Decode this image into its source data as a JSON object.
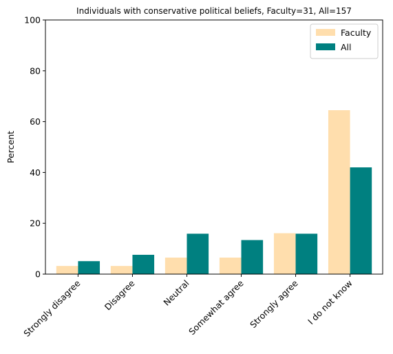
{
  "chart_data": {
    "type": "bar",
    "title": "Individuals with conservative political beliefs, Faculty=31, All=157",
    "xlabel": "",
    "ylabel": "Percent",
    "ylim": [
      0,
      100
    ],
    "yticks": [
      0,
      20,
      40,
      60,
      80,
      100
    ],
    "categories": [
      "Strongly disagree",
      "Disagree",
      "Neutral",
      "Somewhat agree",
      "Strongly agree",
      "I do not know"
    ],
    "series": [
      {
        "name": "Faculty",
        "color": "#FFDEAD",
        "values": [
          3.2,
          3.2,
          6.5,
          6.5,
          16.1,
          64.5
        ]
      },
      {
        "name": "All",
        "color": "#008080",
        "values": [
          5.1,
          7.6,
          15.9,
          13.4,
          15.9,
          42.0
        ]
      }
    ],
    "legend_position": "top-right",
    "grid": false
  }
}
